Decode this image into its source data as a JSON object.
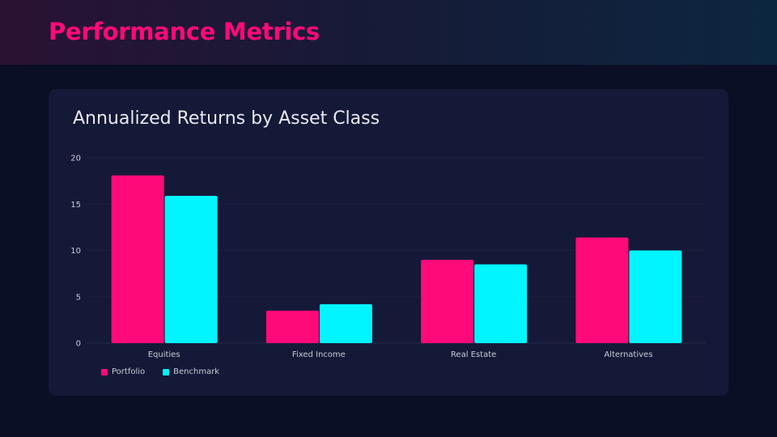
{
  "header": {
    "title": "Performance Metrics"
  },
  "chart_data": {
    "type": "bar",
    "title": "Annualized Returns by Asset Class",
    "xlabel": "",
    "ylabel": "",
    "categories": [
      "Equities",
      "Fixed Income",
      "Real Estate",
      "Alternatives"
    ],
    "series": [
      {
        "name": "Portfolio",
        "values": [
          18.1,
          3.5,
          9.0,
          11.4
        ],
        "color": "#ff0a78"
      },
      {
        "name": "Benchmark",
        "values": [
          15.9,
          4.2,
          8.5,
          10.0
        ],
        "color": "#00f5ff"
      }
    ],
    "ylim": [
      0,
      20
    ],
    "yticks": [
      "0",
      "5",
      "10",
      "15",
      "20"
    ],
    "grid": true,
    "legend": "bottom-left"
  }
}
